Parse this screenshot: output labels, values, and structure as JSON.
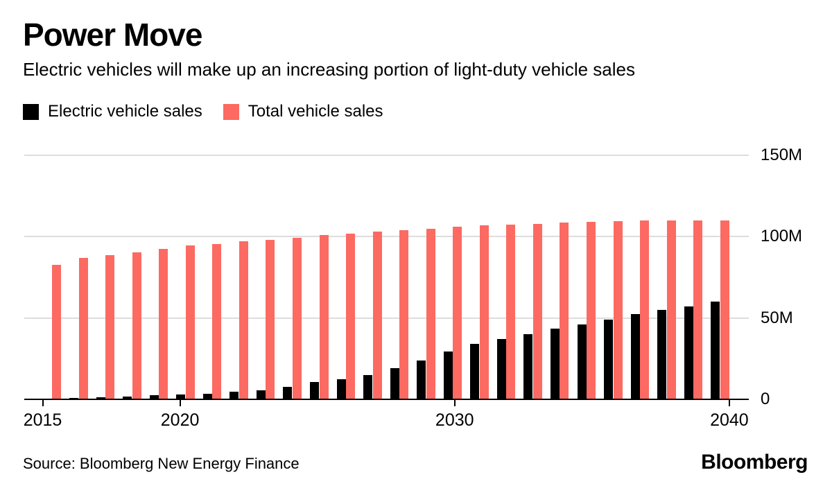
{
  "header": {
    "title": "Power Move",
    "subtitle": "Electric vehicles will make up an increasing portion of light-duty vehicle sales"
  },
  "legend": [
    {
      "label": "Electric vehicle sales",
      "color": "#000000"
    },
    {
      "label": "Total vehicle sales",
      "color": "#FC6A62"
    }
  ],
  "chart_data": {
    "type": "bar",
    "title": "Power Move",
    "subtitle": "Electric vehicles will make up an increasing portion of light-duty vehicle sales",
    "unit": "millions of vehicles",
    "categories": [
      2015,
      2016,
      2017,
      2018,
      2019,
      2020,
      2021,
      2022,
      2023,
      2024,
      2025,
      2026,
      2027,
      2028,
      2029,
      2030,
      2031,
      2032,
      2033,
      2034,
      2035,
      2036,
      2037,
      2038,
      2039,
      2040
    ],
    "series": [
      {
        "name": "Electric vehicle sales",
        "color": "#000000",
        "values": [
          0.5,
          1.0,
          1.4,
          1.9,
          2.4,
          2.9,
          3.6,
          4.5,
          5.7,
          7.5,
          10.5,
          12.5,
          15.0,
          19.0,
          24.0,
          29.5,
          34.0,
          37.0,
          40.0,
          43.5,
          46.0,
          49.0,
          52.5,
          55.0,
          57.0,
          60.0
        ]
      },
      {
        "name": "Total vehicle sales",
        "color": "#FC6A62",
        "values": [
          82.5,
          87.0,
          88.5,
          90.5,
          92.5,
          94.5,
          95.5,
          97.0,
          98.0,
          99.5,
          101.0,
          102.0,
          103.0,
          104.0,
          105.0,
          106.0,
          107.0,
          107.5,
          108.0,
          108.5,
          109.0,
          109.5,
          110.0,
          110.0,
          110.0,
          110.0
        ]
      }
    ],
    "ylim": [
      0,
      150
    ],
    "yticks": [
      {
        "value": 0,
        "label": "0"
      },
      {
        "value": 50,
        "label": "50M"
      },
      {
        "value": 100,
        "label": "100M"
      },
      {
        "value": 150,
        "label": "150M"
      }
    ],
    "xticks": [
      {
        "year": 2015,
        "label": "2015"
      },
      {
        "year": 2020,
        "label": "2020"
      },
      {
        "year": 2030,
        "label": "2030"
      },
      {
        "year": 2040,
        "label": "2040"
      }
    ],
    "grid": "horizontal",
    "legend_position": "top-left",
    "value_axis_side": "right"
  },
  "footer": {
    "source": "Source: Bloomberg New Energy Finance",
    "brand": "Bloomberg"
  },
  "colors": {
    "ev_bar": "#000000",
    "total_bar": "#FC6A62",
    "gridline": "#dddddd",
    "axis": "#000000",
    "background": "#ffffff",
    "text": "#000000"
  }
}
